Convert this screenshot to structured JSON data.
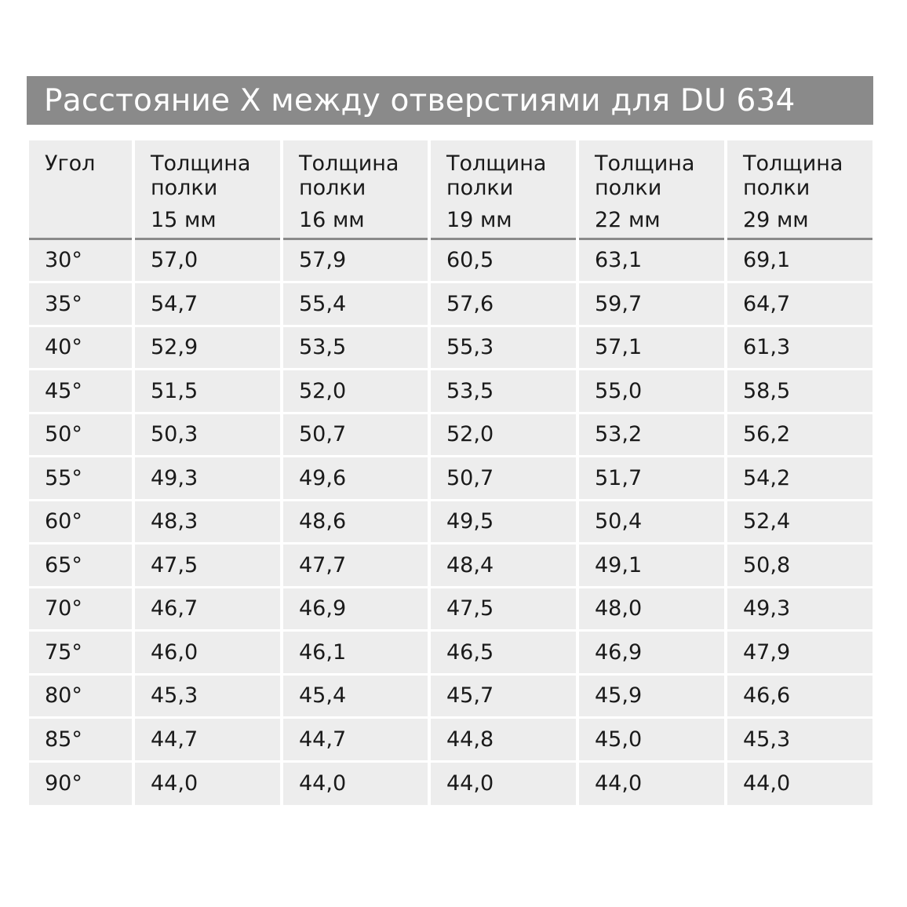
{
  "title": "Расстояние X между отверстиями для DU 634",
  "headers": [
    {
      "line1": "Угол",
      "line2": "",
      "line3": ""
    },
    {
      "line1": "Толщина",
      "line2": "полки",
      "line3": "15 мм"
    },
    {
      "line1": "Толщина",
      "line2": "полки",
      "line3": "16 мм"
    },
    {
      "line1": "Толщина",
      "line2": "полки",
      "line3": "19 мм"
    },
    {
      "line1": "Толщина",
      "line2": "полки",
      "line3": "22 мм"
    },
    {
      "line1": "Толщина",
      "line2": "полки",
      "line3": "29 мм"
    }
  ],
  "rows": [
    [
      "30°",
      "57,0",
      "57,9",
      "60,5",
      "63,1",
      "69,1"
    ],
    [
      "35°",
      "54,7",
      "55,4",
      "57,6",
      "59,7",
      "64,7"
    ],
    [
      "40°",
      "52,9",
      "53,5",
      "55,3",
      "57,1",
      "61,3"
    ],
    [
      "45°",
      "51,5",
      "52,0",
      "53,5",
      "55,0",
      "58,5"
    ],
    [
      "50°",
      "50,3",
      "50,7",
      "52,0",
      "53,2",
      "56,2"
    ],
    [
      "55°",
      "49,3",
      "49,6",
      "50,7",
      "51,7",
      "54,2"
    ],
    [
      "60°",
      "48,3",
      "48,6",
      "49,5",
      "50,4",
      "52,4"
    ],
    [
      "65°",
      "47,5",
      "47,7",
      "48,4",
      "49,1",
      "50,8"
    ],
    [
      "70°",
      "46,7",
      "46,9",
      "47,5",
      "48,0",
      "49,3"
    ],
    [
      "75°",
      "46,0",
      "46,1",
      "46,5",
      "46,9",
      "47,9"
    ],
    [
      "80°",
      "45,3",
      "45,4",
      "45,7",
      "45,9",
      "46,6"
    ],
    [
      "85°",
      "44,7",
      "44,7",
      "44,8",
      "45,0",
      "45,3"
    ],
    [
      "90°",
      "44,0",
      "44,0",
      "44,0",
      "44,0",
      "44,0"
    ]
  ]
}
